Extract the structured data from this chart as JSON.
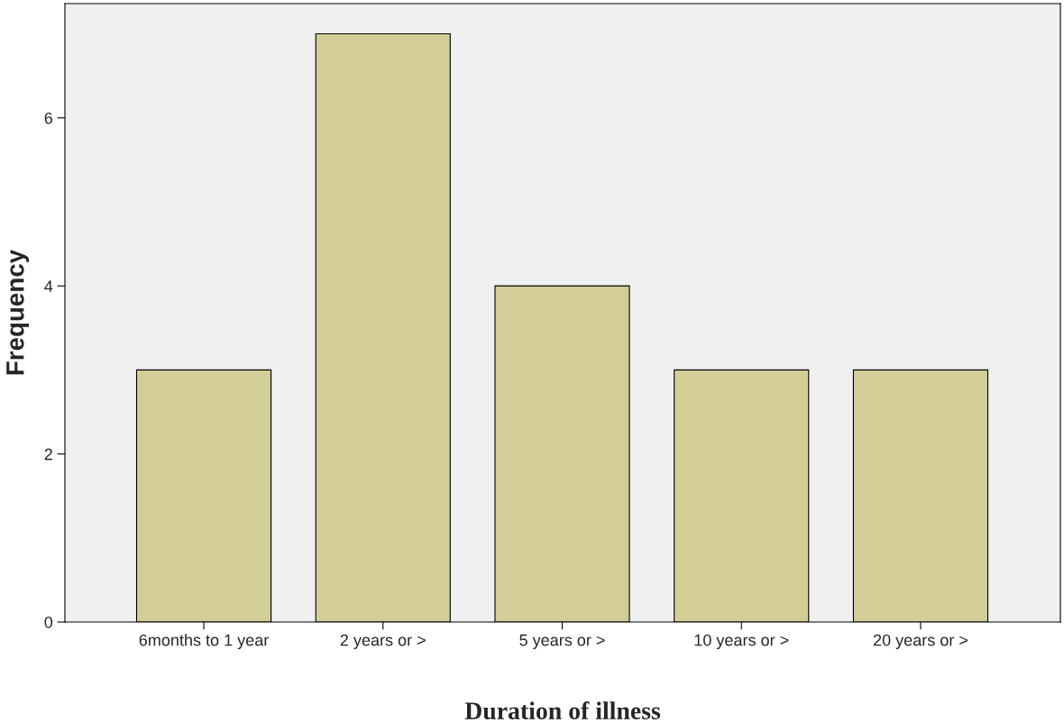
{
  "chart_data": {
    "type": "bar",
    "xlabel": "Duration of illness",
    "ylabel": "Frequency",
    "categories": [
      "6months to 1 year",
      "2 years or >",
      "5 years or >",
      "10 years or >",
      "20 years or >"
    ],
    "values": [
      3,
      7,
      4,
      3,
      3
    ],
    "color": "#d3ce97",
    "ylim": [
      0,
      7.36
    ],
    "yticks": [
      0,
      2,
      4,
      6
    ],
    "grid": false,
    "legend": false
  }
}
